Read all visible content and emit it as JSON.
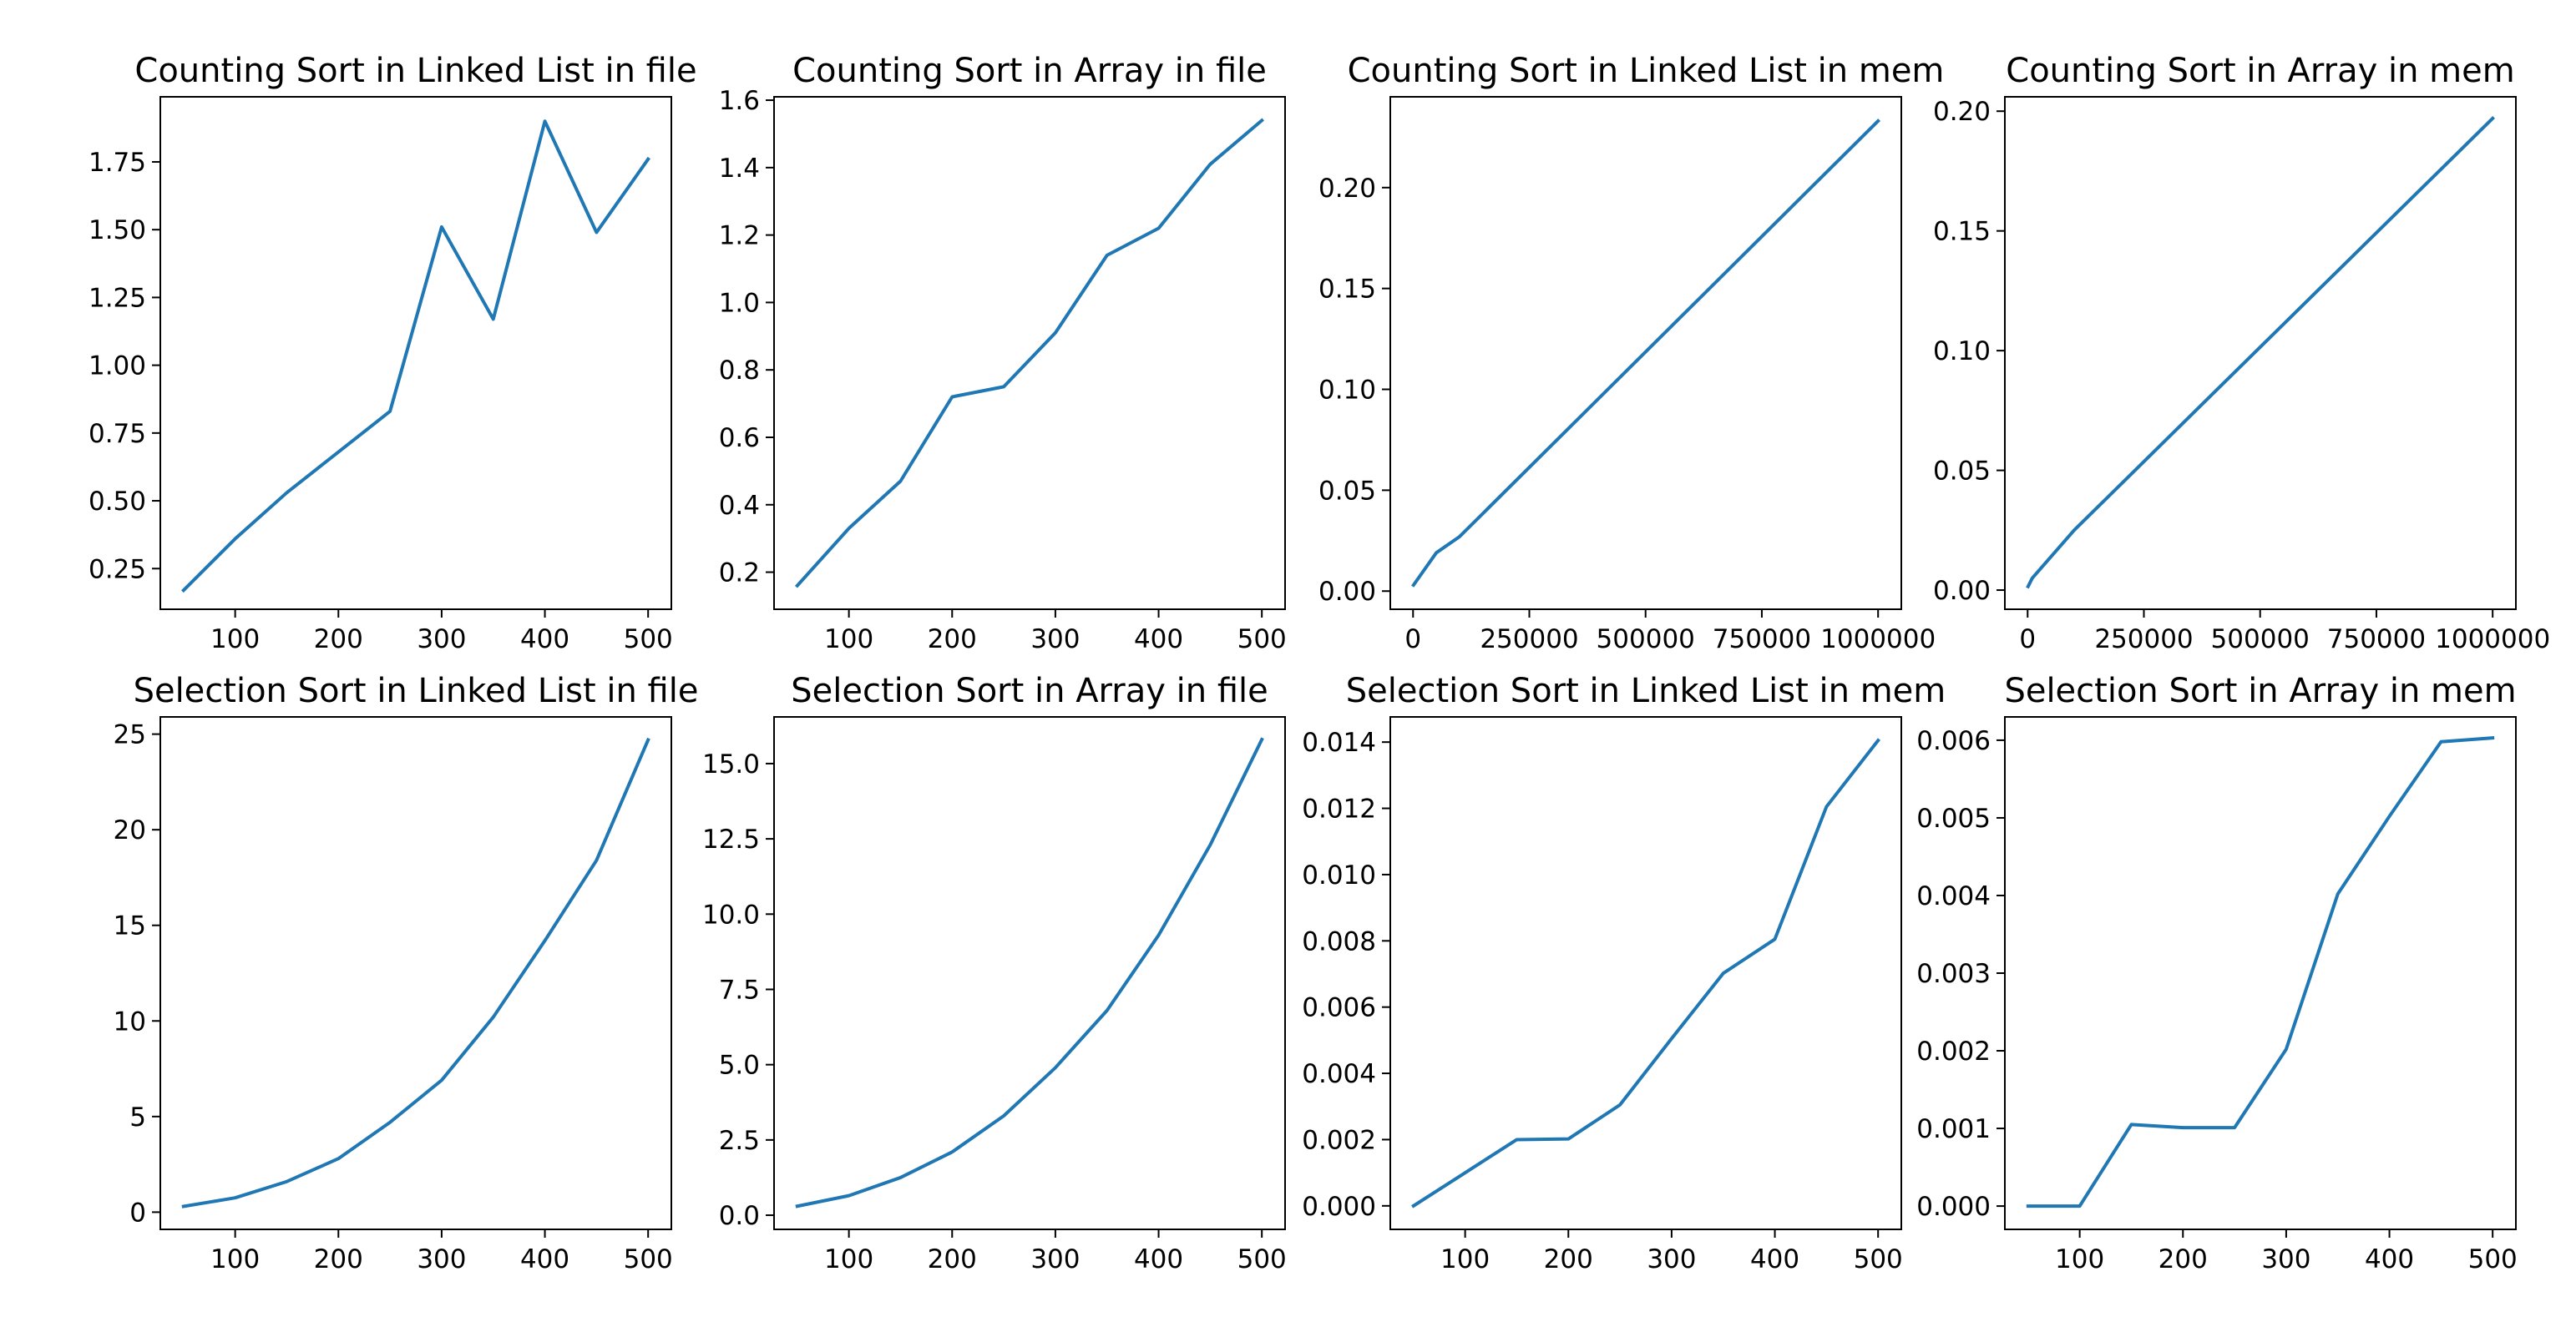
{
  "chart_data": [
    {
      "type": "line",
      "title": "Counting Sort in Linked List in file",
      "x": [
        50,
        100,
        150,
        200,
        250,
        300,
        350,
        400,
        450,
        500
      ],
      "y": [
        0.17,
        0.36,
        0.53,
        0.68,
        0.83,
        1.51,
        1.17,
        1.9,
        1.49,
        1.76
      ],
      "xticks": [
        100,
        200,
        300,
        400,
        500
      ],
      "yticks": [
        0.25,
        0.5,
        0.75,
        1.0,
        1.25,
        1.5,
        1.75
      ],
      "yticklabels": [
        "0.25",
        "0.50",
        "0.75",
        "1.00",
        "1.25",
        "1.50",
        "1.75"
      ],
      "xlim": [
        27.5,
        522.5
      ],
      "ylim": [
        0.1,
        1.99
      ]
    },
    {
      "type": "line",
      "title": "Counting Sort in Array in file",
      "x": [
        50,
        100,
        150,
        200,
        250,
        300,
        350,
        400,
        450,
        500
      ],
      "y": [
        0.16,
        0.33,
        0.47,
        0.72,
        0.75,
        0.91,
        1.14,
        1.22,
        1.41,
        1.54
      ],
      "xticks": [
        100,
        200,
        300,
        400,
        500
      ],
      "yticks": [
        0.2,
        0.4,
        0.6,
        0.8,
        1.0,
        1.2,
        1.4,
        1.6
      ],
      "yticklabels": [
        "0.2",
        "0.4",
        "0.6",
        "0.8",
        "1.0",
        "1.2",
        "1.4",
        "1.6"
      ],
      "xlim": [
        27.5,
        522.5
      ],
      "ylim": [
        0.09,
        1.61
      ]
    },
    {
      "type": "line",
      "title": "Counting Sort in Linked List in mem",
      "x": [
        1000,
        50000,
        100000,
        1000000
      ],
      "y": [
        0.003,
        0.019,
        0.027,
        0.233
      ],
      "xticks": [
        0,
        250000,
        500000,
        750000,
        1000000
      ],
      "xticklabels": [
        "0",
        "250000",
        "500000",
        "750000",
        "1000000"
      ],
      "yticks": [
        0.0,
        0.05,
        0.1,
        0.15,
        0.2
      ],
      "yticklabels": [
        "0.00",
        "0.05",
        "0.10",
        "0.15",
        "0.20"
      ],
      "xlim": [
        -48950,
        1049950
      ],
      "ylim": [
        -0.009,
        0.245
      ]
    },
    {
      "type": "line",
      "title": "Counting Sort in Array in mem",
      "x": [
        1000,
        10000,
        100000,
        1000000
      ],
      "y": [
        0.0015,
        0.005,
        0.025,
        0.197
      ],
      "xticks": [
        0,
        250000,
        500000,
        750000,
        1000000
      ],
      "xticklabels": [
        "0",
        "250000",
        "500000",
        "750000",
        "1000000"
      ],
      "yticks": [
        0.0,
        0.05,
        0.1,
        0.15,
        0.2
      ],
      "yticklabels": [
        "0.00",
        "0.05",
        "0.10",
        "0.15",
        "0.20"
      ],
      "xlim": [
        -48950,
        1049950
      ],
      "ylim": [
        -0.008,
        0.206
      ]
    },
    {
      "type": "line",
      "title": "Selection Sort in Linked List in file",
      "x": [
        50,
        100,
        150,
        200,
        250,
        300,
        350,
        400,
        450,
        500
      ],
      "y": [
        0.3,
        0.75,
        1.6,
        2.8,
        4.7,
        6.9,
        10.2,
        14.2,
        18.4,
        24.7
      ],
      "xticks": [
        100,
        200,
        300,
        400,
        500
      ],
      "yticks": [
        0,
        5,
        10,
        15,
        20,
        25
      ],
      "yticklabels": [
        "0",
        "5",
        "10",
        "15",
        "20",
        "25"
      ],
      "xlim": [
        27.5,
        522.5
      ],
      "ylim": [
        -0.9,
        25.9
      ]
    },
    {
      "type": "line",
      "title": "Selection Sort in Array in file",
      "x": [
        50,
        100,
        150,
        200,
        250,
        300,
        350,
        400,
        450,
        500
      ],
      "y": [
        0.3,
        0.65,
        1.25,
        2.1,
        3.3,
        4.9,
        6.8,
        9.3,
        12.3,
        15.8
      ],
      "xticks": [
        100,
        200,
        300,
        400,
        500
      ],
      "yticks": [
        0.0,
        2.5,
        5.0,
        7.5,
        10.0,
        12.5,
        15.0
      ],
      "yticklabels": [
        "0.0",
        "2.5",
        "5.0",
        "7.5",
        "10.0",
        "12.5",
        "15.0"
      ],
      "xlim": [
        27.5,
        522.5
      ],
      "ylim": [
        -0.47,
        16.55
      ]
    },
    {
      "type": "line",
      "title": "Selection Sort in Linked List in mem",
      "x": [
        50,
        100,
        150,
        200,
        250,
        300,
        350,
        400,
        450,
        500
      ],
      "y": [
        0.0,
        0.001,
        0.002,
        0.00202,
        0.00305,
        0.00505,
        0.00702,
        0.00805,
        0.01205,
        0.01405
      ],
      "xticks": [
        100,
        200,
        300,
        400,
        500
      ],
      "yticks": [
        0.0,
        0.002,
        0.004,
        0.006,
        0.008,
        0.01,
        0.012,
        0.014
      ],
      "yticklabels": [
        "0.000",
        "0.002",
        "0.004",
        "0.006",
        "0.008",
        "0.010",
        "0.012",
        "0.014"
      ],
      "xlim": [
        27.5,
        522.5
      ],
      "ylim": [
        -0.00071,
        0.01476
      ]
    },
    {
      "type": "line",
      "title": "Selection Sort in Array in mem",
      "x": [
        50,
        100,
        150,
        200,
        250,
        300,
        350,
        400,
        450,
        500
      ],
      "y": [
        0.0,
        0.0,
        0.00105,
        0.00101,
        0.00101,
        0.00202,
        0.00402,
        0.00502,
        0.00598,
        0.00603
      ],
      "xticks": [
        100,
        200,
        300,
        400,
        500
      ],
      "yticks": [
        0.0,
        0.001,
        0.002,
        0.003,
        0.004,
        0.005,
        0.006
      ],
      "yticklabels": [
        "0.000",
        "0.001",
        "0.002",
        "0.003",
        "0.004",
        "0.005",
        "0.006"
      ],
      "xlim": [
        27.5,
        522.5
      ],
      "ylim": [
        -0.0003,
        0.0063
      ]
    }
  ],
  "colors": {
    "line": "#1f77b4",
    "axes": "#000000",
    "background": "#ffffff"
  }
}
